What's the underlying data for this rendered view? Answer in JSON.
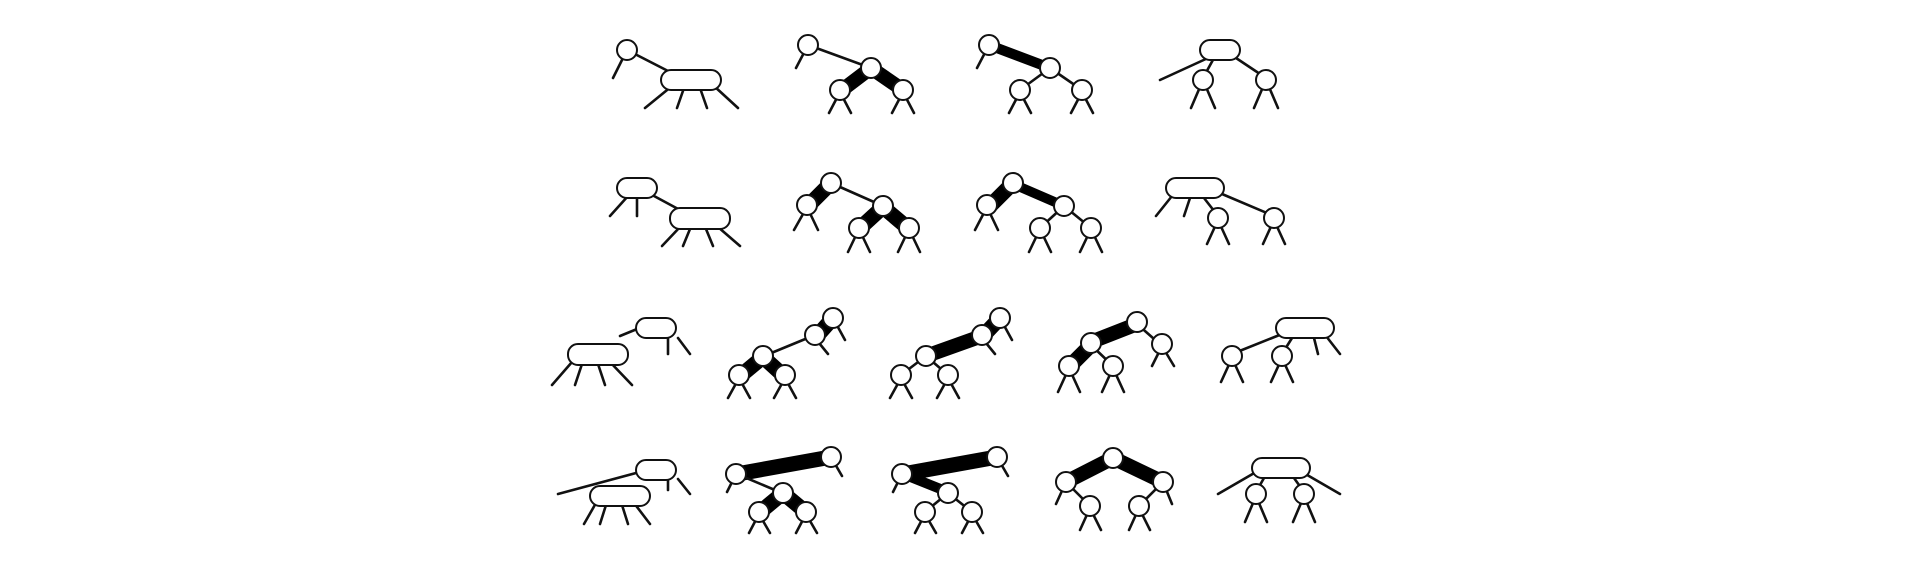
{
  "figure": {
    "colors": {
      "background": "#ffffff",
      "stroke": "#111111",
      "red_link": "#000000",
      "node_fill": "#ffffff"
    },
    "legend": "none",
    "description_kind": "2-3-4 tree nodes and their red-black binary tree equivalents",
    "grid": {
      "rows": 4,
      "row_item_counts": [
        4,
        4,
        5,
        5
      ]
    }
  }
}
